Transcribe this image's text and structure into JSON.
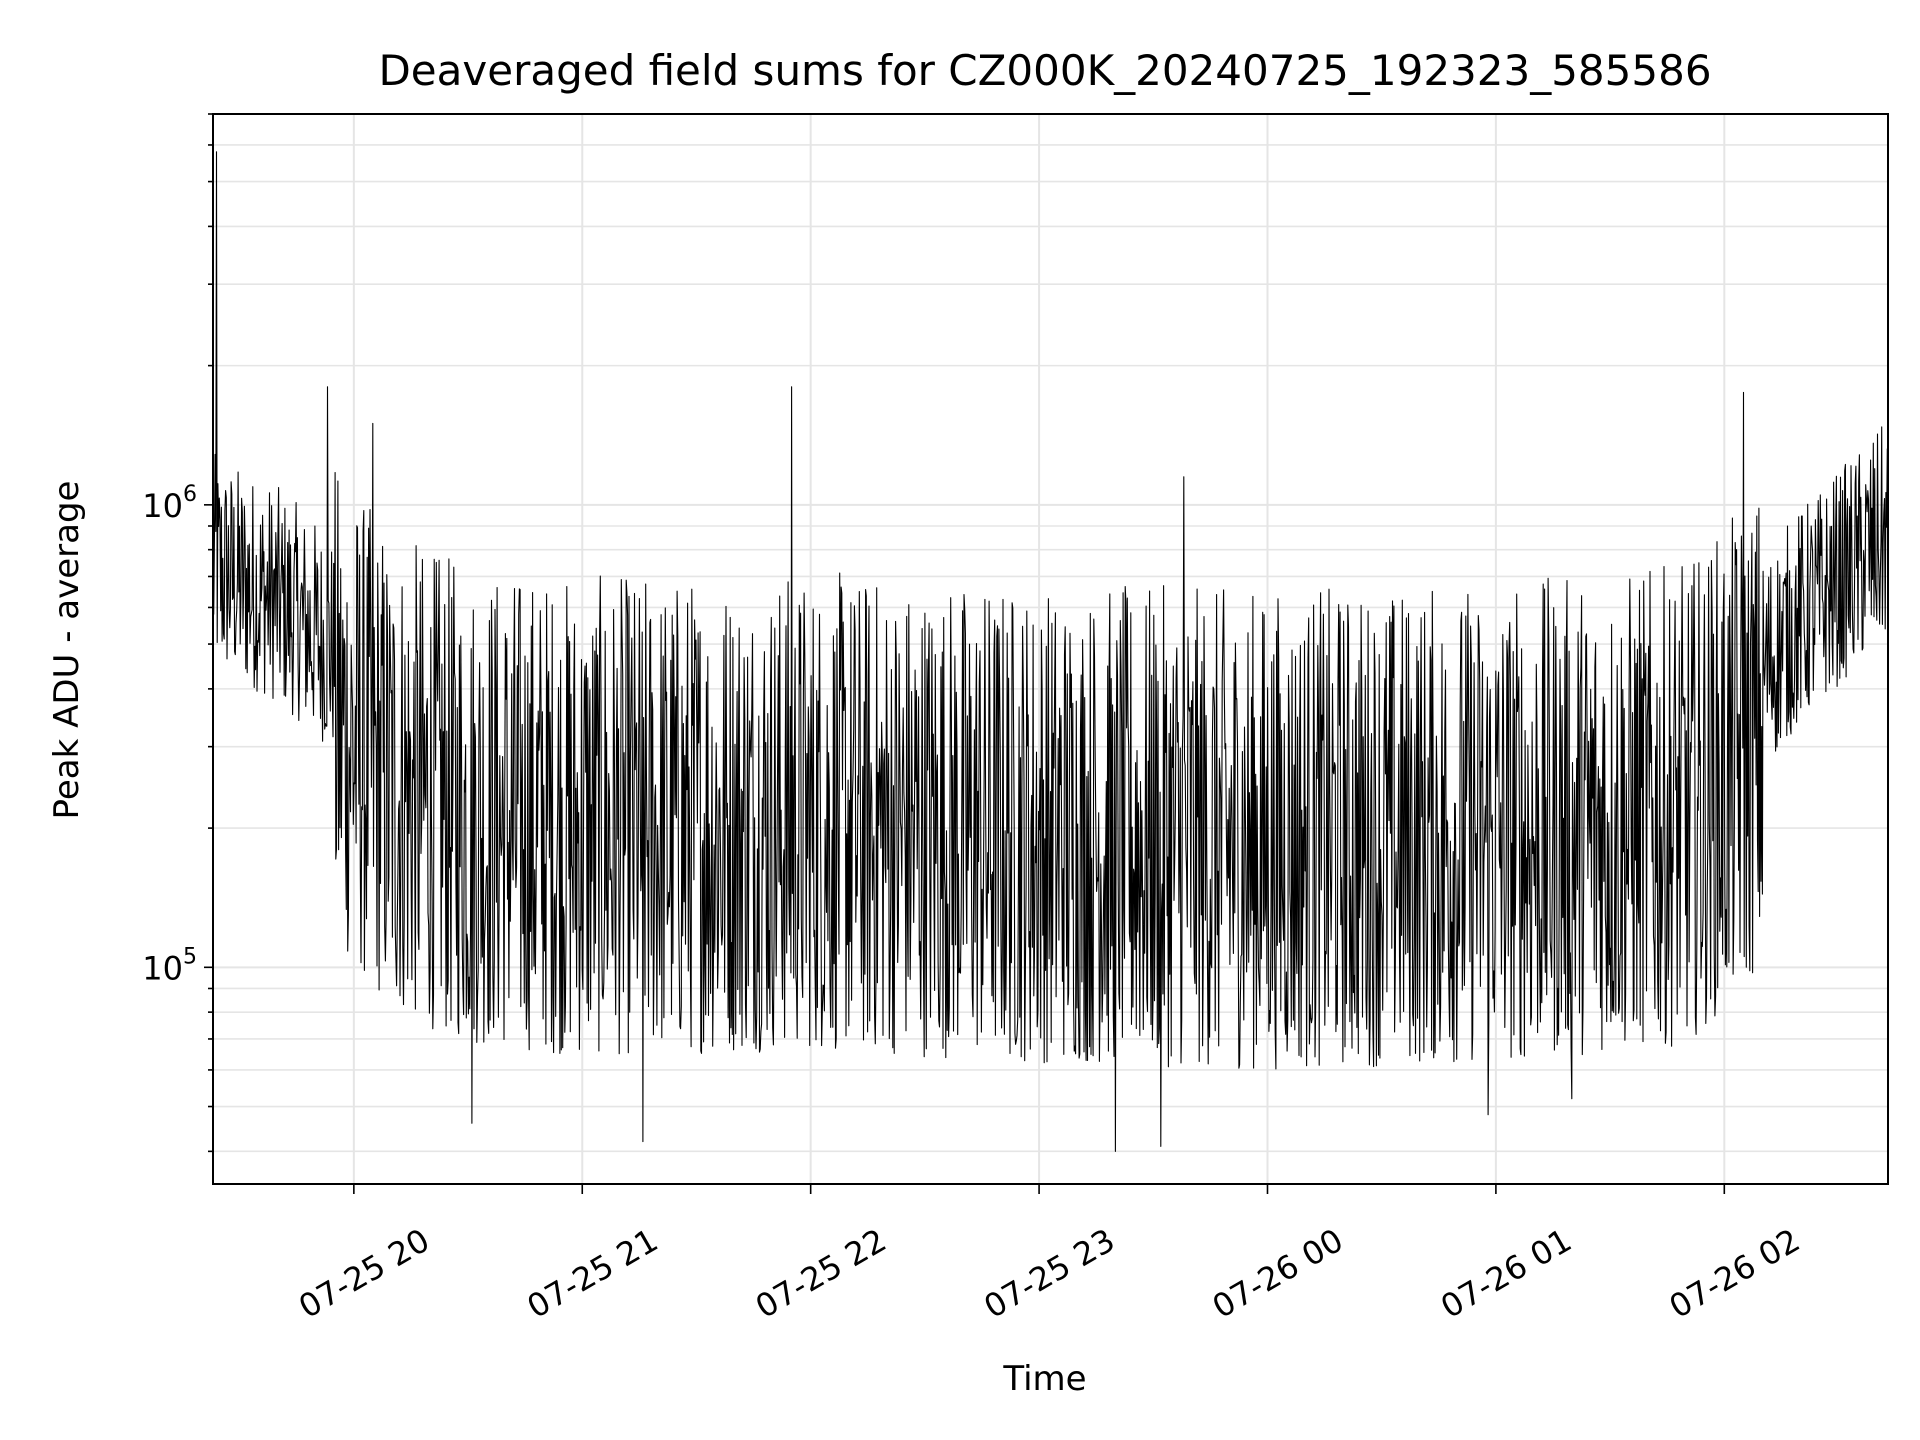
{
  "colors": {
    "line": "#000000",
    "grid": "#e5e5e5",
    "frame": "#000000",
    "background": "#ffffff"
  },
  "chart_data": {
    "type": "line",
    "title": "Deaveraged field sums for CZ000K_20240725_192323_585586",
    "xlabel": "Time",
    "ylabel": "Peak ADU - average",
    "yscale": "log",
    "grid": true,
    "legend": "none",
    "xlim": [
      "2024-07-25 19:23",
      "2024-07-26 02:43"
    ],
    "ylim": [
      34000,
      7000000
    ],
    "x_ticks": [
      {
        "value": "2024-07-25 20:00",
        "label": "07-25 20"
      },
      {
        "value": "2024-07-25 21:00",
        "label": "07-25 21"
      },
      {
        "value": "2024-07-25 22:00",
        "label": "07-25 22"
      },
      {
        "value": "2024-07-25 23:00",
        "label": "07-25 23"
      },
      {
        "value": "2024-07-26 00:00",
        "label": "07-26 00"
      },
      {
        "value": "2024-07-26 01:00",
        "label": "07-26 01"
      },
      {
        "value": "2024-07-26 02:00",
        "label": "07-26 02"
      }
    ],
    "y_ticks": [
      {
        "value": 100000,
        "base": "10",
        "exp": "5"
      },
      {
        "value": 1000000,
        "base": "10",
        "exp": "6"
      }
    ],
    "series": [
      {
        "baseline": [
          {
            "x": "2024-07-25 19:23",
            "y": 850000
          },
          {
            "x": "2024-07-25 19:40",
            "y": 720000
          },
          {
            "x": "2024-07-25 19:55",
            "y": 560000
          },
          {
            "x": "2024-07-25 20:10",
            "y": 400000
          },
          {
            "x": "2024-07-25 20:30",
            "y": 340000
          },
          {
            "x": "2024-07-25 21:00",
            "y": 320000
          },
          {
            "x": "2024-07-25 22:00",
            "y": 330000
          },
          {
            "x": "2024-07-25 23:00",
            "y": 310000
          },
          {
            "x": "2024-07-26 00:00",
            "y": 300000
          },
          {
            "x": "2024-07-26 01:00",
            "y": 310000
          },
          {
            "x": "2024-07-26 01:50",
            "y": 340000
          },
          {
            "x": "2024-07-26 02:05",
            "y": 450000
          },
          {
            "x": "2024-07-26 02:20",
            "y": 650000
          },
          {
            "x": "2024-07-26 02:43",
            "y": 1000000
          }
        ],
        "noise_factor": [
          0.2,
          2.2
        ],
        "spikes": [
          {
            "x": "2024-07-25 19:24",
            "y": 5800000
          },
          {
            "x": "2024-07-25 19:53",
            "y": 1800000
          },
          {
            "x": "2024-07-25 20:05",
            "y": 1500000
          },
          {
            "x": "2024-07-25 21:55",
            "y": 1800000
          },
          {
            "x": "2024-07-25 23:38",
            "y": 1150000
          },
          {
            "x": "2024-07-26 02:05",
            "y": 1750000
          },
          {
            "x": "2024-07-25 20:31",
            "y": 46000
          },
          {
            "x": "2024-07-25 21:16",
            "y": 42000
          },
          {
            "x": "2024-07-25 23:20",
            "y": 40000
          },
          {
            "x": "2024-07-25 23:32",
            "y": 41000
          },
          {
            "x": "2024-07-26 00:58",
            "y": 48000
          },
          {
            "x": "2024-07-26 01:20",
            "y": 52000
          }
        ]
      }
    ]
  }
}
